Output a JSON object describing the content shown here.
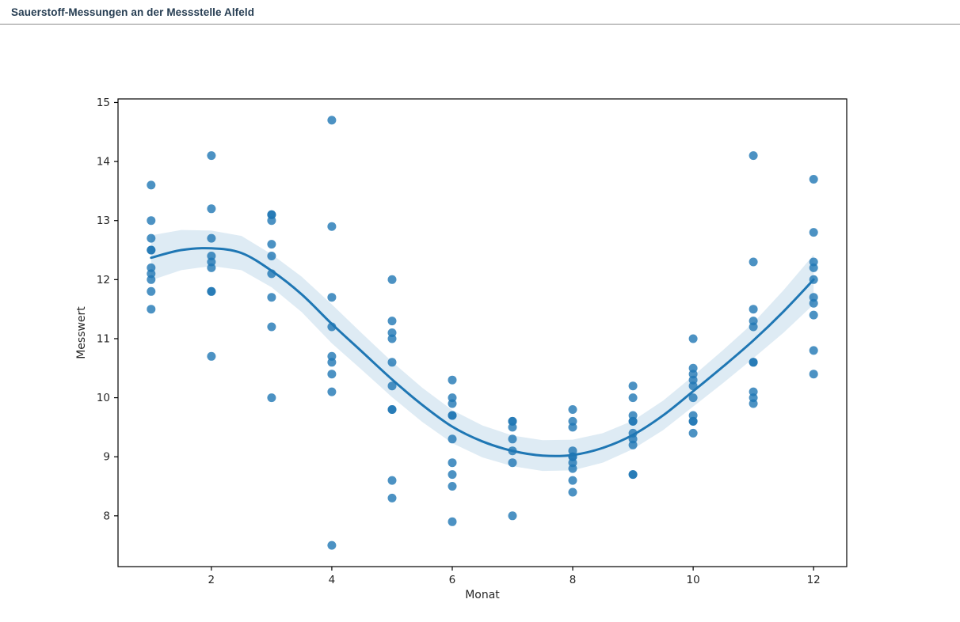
{
  "header": {
    "title": "Sauerstoff-Messungen an der Messstelle Alfeld"
  },
  "chart_data": {
    "type": "scatter",
    "title": "Sauerstoff-Messungen an der Messstelle Alfeld",
    "xlabel": "Monat",
    "ylabel": "Messwert",
    "xlim": [
      0.45,
      12.55
    ],
    "ylim": [
      7.14,
      15.06
    ],
    "xticks": [
      2,
      4,
      6,
      8,
      10,
      12
    ],
    "yticks": [
      8,
      9,
      10,
      11,
      12,
      13,
      14,
      15
    ],
    "grid": false,
    "legend": "none",
    "colors": {
      "dot": "#1f77b4",
      "dot_opacity": 0.8,
      "line": "#1f77b4",
      "band": "#1f77b4",
      "band_opacity": 0.15,
      "frame": "#000000",
      "text": "#262626",
      "header_text": "#263d52",
      "divider": "#8c8c8c"
    },
    "points": [
      [
        1,
        13.6
      ],
      [
        1,
        13.0
      ],
      [
        1,
        12.7
      ],
      [
        1,
        12.5
      ],
      [
        1,
        12.5
      ],
      [
        1,
        12.2
      ],
      [
        1,
        12.1
      ],
      [
        1,
        12.0
      ],
      [
        1,
        11.8
      ],
      [
        1,
        11.5
      ],
      [
        2,
        14.1
      ],
      [
        2,
        13.2
      ],
      [
        2,
        12.7
      ],
      [
        2,
        12.4
      ],
      [
        2,
        12.3
      ],
      [
        2,
        12.2
      ],
      [
        2,
        11.8
      ],
      [
        2,
        11.8
      ],
      [
        2,
        10.7
      ],
      [
        3,
        13.1
      ],
      [
        3,
        13.1
      ],
      [
        3,
        13.0
      ],
      [
        3,
        12.6
      ],
      [
        3,
        12.4
      ],
      [
        3,
        12.1
      ],
      [
        3,
        11.7
      ],
      [
        3,
        11.2
      ],
      [
        3,
        10.0
      ],
      [
        4,
        14.7
      ],
      [
        4,
        12.9
      ],
      [
        4,
        11.7
      ],
      [
        4,
        11.2
      ],
      [
        4,
        10.7
      ],
      [
        4,
        10.6
      ],
      [
        4,
        10.4
      ],
      [
        4,
        10.1
      ],
      [
        4,
        7.5
      ],
      [
        5,
        12.0
      ],
      [
        5,
        11.3
      ],
      [
        5,
        11.1
      ],
      [
        5,
        11.0
      ],
      [
        5,
        10.6
      ],
      [
        5,
        10.2
      ],
      [
        5,
        9.8
      ],
      [
        5,
        9.8
      ],
      [
        5,
        8.6
      ],
      [
        5,
        8.3
      ],
      [
        6,
        10.3
      ],
      [
        6,
        10.0
      ],
      [
        6,
        9.9
      ],
      [
        6,
        9.7
      ],
      [
        6,
        9.7
      ],
      [
        6,
        9.3
      ],
      [
        6,
        8.9
      ],
      [
        6,
        8.7
      ],
      [
        6,
        8.5
      ],
      [
        6,
        7.9
      ],
      [
        7,
        9.6
      ],
      [
        7,
        9.6
      ],
      [
        7,
        9.5
      ],
      [
        7,
        9.3
      ],
      [
        7,
        9.1
      ],
      [
        7,
        8.9
      ],
      [
        7,
        8.0
      ],
      [
        8,
        9.8
      ],
      [
        8,
        9.6
      ],
      [
        8,
        9.5
      ],
      [
        8,
        9.1
      ],
      [
        8,
        9.0
      ],
      [
        8,
        9.0
      ],
      [
        8,
        8.9
      ],
      [
        8,
        8.8
      ],
      [
        8,
        8.6
      ],
      [
        8,
        8.4
      ],
      [
        9,
        10.2
      ],
      [
        9,
        10.0
      ],
      [
        9,
        9.7
      ],
      [
        9,
        9.6
      ],
      [
        9,
        9.6
      ],
      [
        9,
        9.4
      ],
      [
        9,
        9.3
      ],
      [
        9,
        9.2
      ],
      [
        9,
        8.7
      ],
      [
        9,
        8.7
      ],
      [
        10,
        11.0
      ],
      [
        10,
        10.5
      ],
      [
        10,
        10.4
      ],
      [
        10,
        10.3
      ],
      [
        10,
        10.2
      ],
      [
        10,
        10.0
      ],
      [
        10,
        9.7
      ],
      [
        10,
        9.6
      ],
      [
        10,
        9.6
      ],
      [
        10,
        9.4
      ],
      [
        11,
        14.1
      ],
      [
        11,
        12.3
      ],
      [
        11,
        11.5
      ],
      [
        11,
        11.3
      ],
      [
        11,
        11.2
      ],
      [
        11,
        10.6
      ],
      [
        11,
        10.6
      ],
      [
        11,
        10.1
      ],
      [
        11,
        10.0
      ],
      [
        11,
        9.9
      ],
      [
        12,
        13.7
      ],
      [
        12,
        12.8
      ],
      [
        12,
        12.3
      ],
      [
        12,
        12.2
      ],
      [
        12,
        12.0
      ],
      [
        12,
        11.7
      ],
      [
        12,
        11.6
      ],
      [
        12,
        11.4
      ],
      [
        12,
        10.8
      ],
      [
        12,
        10.4
      ]
    ],
    "trend": [
      [
        1,
        12.37
      ],
      [
        1.5,
        12.5
      ],
      [
        2,
        12.53
      ],
      [
        2.5,
        12.45
      ],
      [
        3,
        12.15
      ],
      [
        3.5,
        11.75
      ],
      [
        4,
        11.25
      ],
      [
        4.5,
        10.78
      ],
      [
        5,
        10.31
      ],
      [
        5.5,
        9.88
      ],
      [
        6,
        9.51
      ],
      [
        6.5,
        9.26
      ],
      [
        7,
        9.1
      ],
      [
        7.5,
        9.02
      ],
      [
        8,
        9.03
      ],
      [
        8.5,
        9.15
      ],
      [
        9,
        9.37
      ],
      [
        9.5,
        9.7
      ],
      [
        10,
        10.11
      ],
      [
        10.5,
        10.53
      ],
      [
        11,
        10.97
      ],
      [
        11.5,
        11.46
      ],
      [
        12,
        12.0
      ]
    ],
    "band": [
      [
        1,
        11.99,
        12.75
      ],
      [
        1.5,
        12.16,
        12.84
      ],
      [
        2,
        12.23,
        12.83
      ],
      [
        2.5,
        12.16,
        12.74
      ],
      [
        3,
        11.87,
        12.43
      ],
      [
        3.5,
        11.45,
        12.05
      ],
      [
        4,
        10.92,
        11.58
      ],
      [
        4.5,
        10.47,
        11.09
      ],
      [
        5,
        10.01,
        10.61
      ],
      [
        5.5,
        9.59,
        10.17
      ],
      [
        6,
        9.23,
        9.79
      ],
      [
        6.5,
        8.99,
        9.53
      ],
      [
        7,
        8.84,
        9.36
      ],
      [
        7.5,
        8.76,
        9.28
      ],
      [
        8,
        8.77,
        9.29
      ],
      [
        8.5,
        8.9,
        9.4
      ],
      [
        9,
        9.13,
        9.61
      ],
      [
        9.5,
        9.45,
        9.95
      ],
      [
        10,
        9.85,
        10.37
      ],
      [
        10.5,
        10.25,
        10.81
      ],
      [
        11,
        10.67,
        11.27
      ],
      [
        11.5,
        11.1,
        11.82
      ],
      [
        12,
        11.58,
        12.42
      ]
    ]
  }
}
